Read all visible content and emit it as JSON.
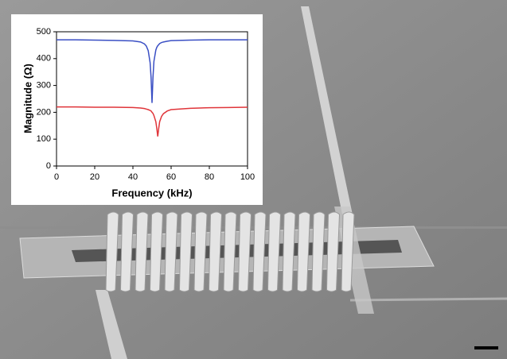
{
  "chart_data": {
    "type": "line",
    "x_label": "Frequency (kHz)",
    "y_label": "Magnitude (Ω)",
    "x": [
      0,
      10,
      20,
      30,
      40,
      44,
      46,
      47,
      48,
      49,
      49.5,
      50,
      50.5,
      51,
      52,
      52.5,
      53,
      53.5,
      54,
      55,
      56,
      58,
      60,
      70,
      80,
      90,
      100
    ],
    "series": [
      {
        "color": "#3a4fc4",
        "values": [
          470,
          470,
          469,
          468,
          466,
          462,
          455,
          447,
          430,
          385,
          330,
          235,
          330,
          390,
          432,
          442,
          448,
          452,
          456,
          460,
          462,
          465,
          467,
          469,
          470,
          470,
          470
        ]
      },
      {
        "color": "#e0353a",
        "values": [
          220,
          220,
          219,
          219,
          218,
          216,
          214,
          212,
          210,
          207,
          205,
          200,
          196,
          188,
          165,
          140,
          110,
          140,
          165,
          185,
          195,
          205,
          210,
          215,
          217,
          218,
          219
        ]
      }
    ],
    "xlim": [
      0,
      100
    ],
    "xticks": [
      0,
      20,
      40,
      60,
      80,
      100
    ],
    "ylim": [
      0,
      500
    ],
    "yticks": [
      0,
      100,
      200,
      300,
      400,
      500
    ]
  }
}
